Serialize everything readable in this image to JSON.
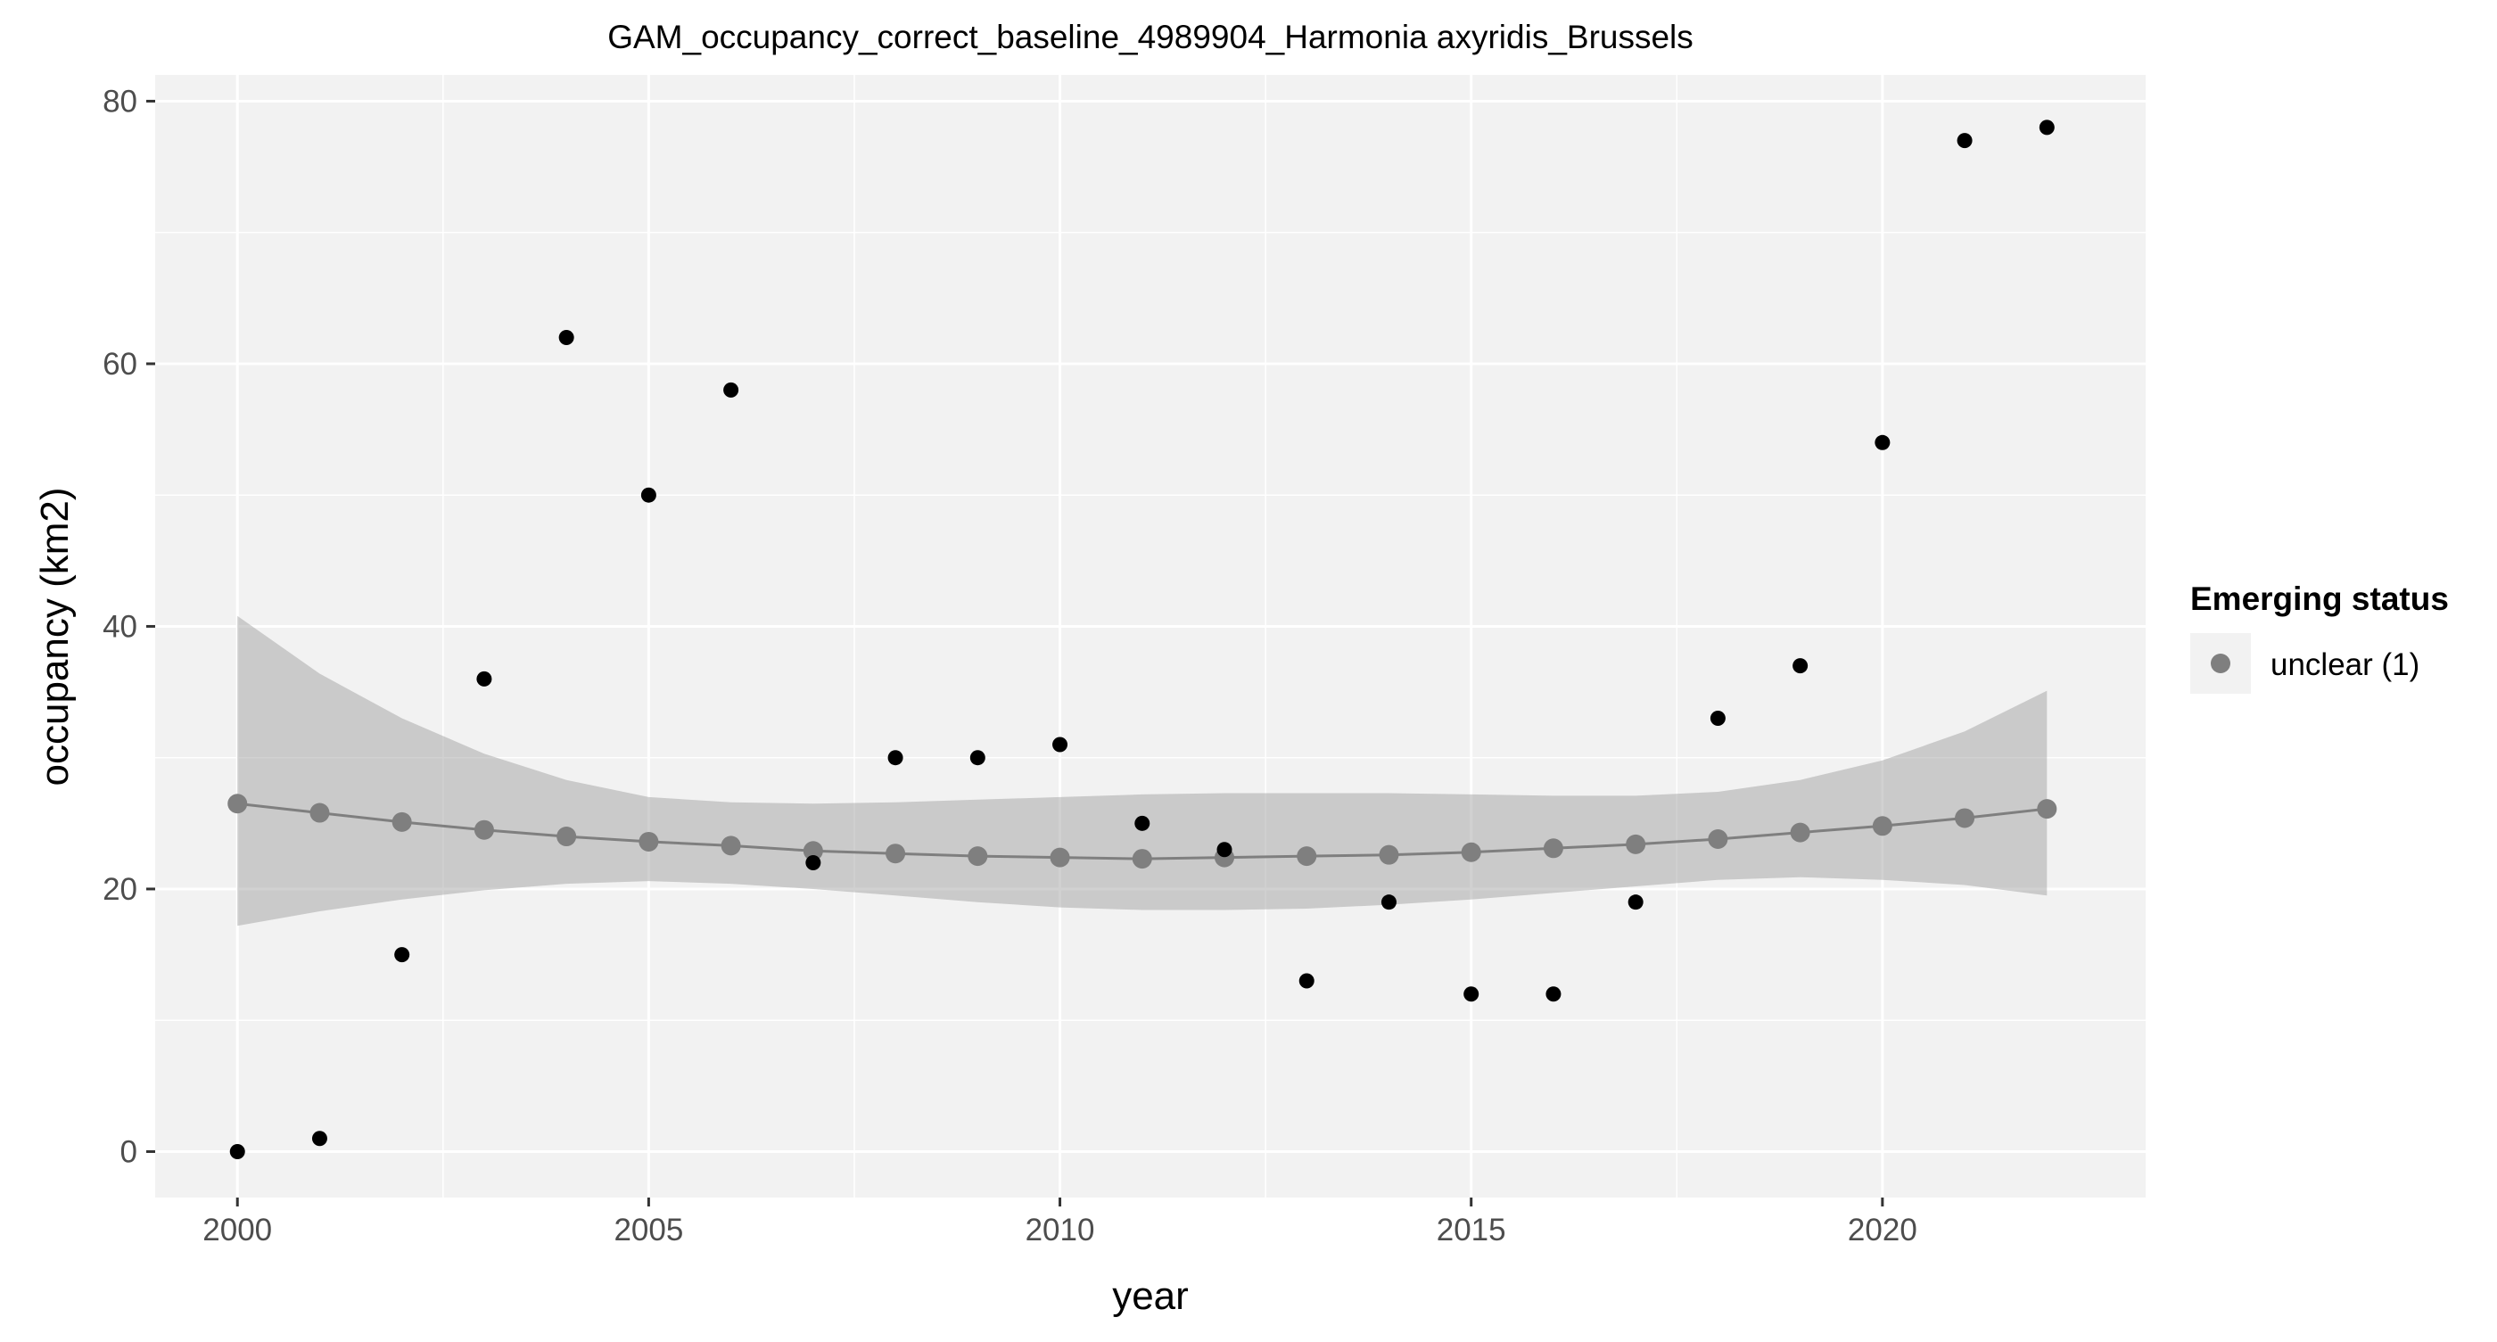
{
  "chart_data": {
    "type": "scatter",
    "title": "GAM_occupancy_correct_baseline_4989904_Harmonia axyridis_Brussels",
    "xlabel": "year",
    "ylabel": "occupancy (km2)",
    "xlim": [
      1999,
      2023.2
    ],
    "ylim": [
      -3.5,
      82
    ],
    "x_ticks": [
      2000,
      2005,
      2010,
      2015,
      2020
    ],
    "x_tick_labels": [
      "2000",
      "2005",
      "2010",
      "2015",
      "2020"
    ],
    "y_ticks": [
      0,
      20,
      40,
      60,
      80
    ],
    "y_tick_labels": [
      "0",
      "20",
      "40",
      "60",
      "80"
    ],
    "grid": true,
    "legend": {
      "title": "Emerging status",
      "position": "right",
      "entries": [
        {
          "label": "unclear (1)",
          "color": "#7f7f7f"
        }
      ]
    },
    "series": [
      {
        "kind": "observed",
        "color": "#000000",
        "x": [
          2000,
          2001,
          2002,
          2003,
          2004,
          2005,
          2006,
          2007,
          2008,
          2009,
          2010,
          2011,
          2012,
          2013,
          2014,
          2015,
          2016,
          2017,
          2018,
          2019,
          2020,
          2021,
          2022
        ],
        "y": [
          0,
          1,
          15,
          36,
          62,
          50,
          58,
          22,
          30,
          30,
          31,
          25,
          23,
          13,
          19,
          12,
          12,
          19,
          33,
          37,
          54,
          77,
          78
        ]
      },
      {
        "kind": "fitted",
        "name": "unclear (1)",
        "color": "#7f7f7f",
        "x": [
          2000,
          2001,
          2002,
          2003,
          2004,
          2005,
          2006,
          2007,
          2008,
          2009,
          2010,
          2011,
          2012,
          2013,
          2014,
          2015,
          2016,
          2017,
          2018,
          2019,
          2020,
          2021,
          2022
        ],
        "y": [
          26.5,
          25.8,
          25.1,
          24.5,
          24.0,
          23.6,
          23.3,
          22.9,
          22.7,
          22.5,
          22.4,
          22.3,
          22.4,
          22.5,
          22.6,
          22.8,
          23.1,
          23.4,
          23.8,
          24.3,
          24.8,
          25.4,
          26.1
        ],
        "lower": [
          17.2,
          18.3,
          19.2,
          19.9,
          20.4,
          20.6,
          20.4,
          20.0,
          19.5,
          19.0,
          18.6,
          18.4,
          18.4,
          18.5,
          18.8,
          19.2,
          19.7,
          20.2,
          20.7,
          20.9,
          20.7,
          20.3,
          19.5
        ],
        "upper": [
          40.8,
          36.4,
          33.0,
          30.3,
          28.3,
          27.0,
          26.6,
          26.5,
          26.6,
          26.8,
          27.0,
          27.2,
          27.3,
          27.3,
          27.3,
          27.2,
          27.1,
          27.1,
          27.4,
          28.3,
          29.8,
          32.0,
          35.1
        ]
      }
    ]
  }
}
